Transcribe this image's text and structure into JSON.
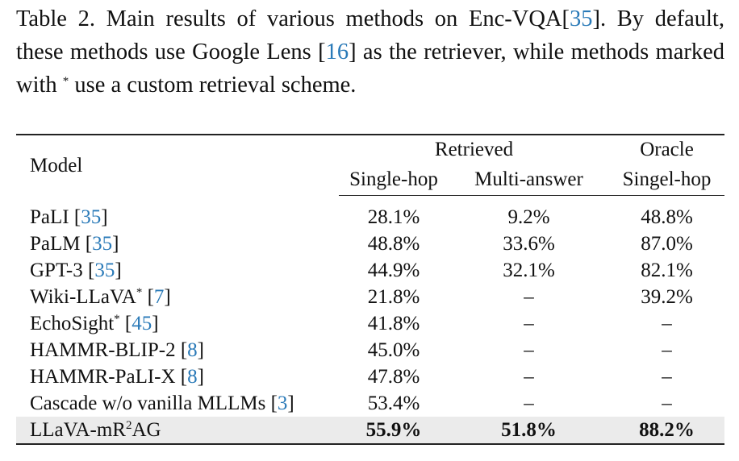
{
  "caption": {
    "parts": [
      "Table 2.  Main results of various methods on Enc-VQA[",
      "35",
      "].  By default, these methods use Google Lens [",
      "16",
      "] as the retriever, while methods marked with ",
      "*",
      " use a custom retrieval scheme."
    ]
  },
  "table": {
    "header": {
      "model": "Model",
      "group1": "Retrieved",
      "group2": "Oracle",
      "columns": [
        "Single-hop",
        "Multi-answer",
        "Singel-hop"
      ]
    },
    "rows": [
      {
        "model": "PaLI",
        "cite": "35",
        "values": [
          "28.1%",
          "9.2%",
          "48.8%"
        ]
      },
      {
        "model": "PaLM",
        "cite": "35",
        "values": [
          "48.8%",
          "33.6%",
          "87.0%"
        ]
      },
      {
        "model": "GPT-3",
        "cite": "35",
        "values": [
          "44.9%",
          "32.1%",
          "82.1%"
        ]
      },
      {
        "model": "Wiki-LLaVA",
        "mark": "*",
        "cite": "7",
        "values": [
          "21.8%",
          "–",
          "39.2%"
        ]
      },
      {
        "model": "EchoSight",
        "mark": "*",
        "cite": "45",
        "values": [
          "41.8%",
          "–",
          "–"
        ]
      },
      {
        "model": "HAMMR-BLIP-2",
        "cite": "8",
        "values": [
          "45.0%",
          "–",
          "–"
        ]
      },
      {
        "model": "HAMMR-PaLI-X",
        "cite": "8",
        "values": [
          "47.8%",
          "–",
          "–"
        ]
      },
      {
        "model": "Cascade w/o vanilla MLLMs",
        "cite": "3",
        "values": [
          "53.4%",
          "–",
          "–"
        ]
      },
      {
        "model": "LLaVA-mR",
        "sup": "2",
        "suffix": "AG",
        "values": [
          "55.9%",
          "51.8%",
          "88.2%"
        ]
      }
    ]
  }
}
